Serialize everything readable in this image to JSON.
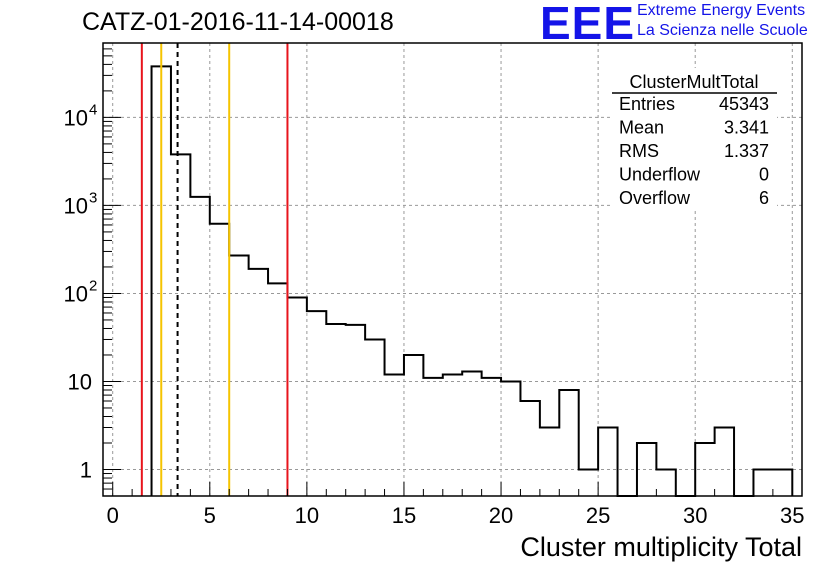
{
  "header": {
    "title": "CATZ-01-2016-11-14-00018",
    "logo_text": "EEE",
    "logo_line1": "Extreme Energy Events",
    "logo_line2": "La Scienza nelle Scuole",
    "logo_color": "#1414e8"
  },
  "stats": {
    "name": "ClusterMultTotal",
    "rows": [
      {
        "label": "Entries",
        "value": "45343"
      },
      {
        "label": "Mean",
        "value": "3.341"
      },
      {
        "label": "RMS",
        "value": "1.337"
      },
      {
        "label": "Underflow",
        "value": "0"
      },
      {
        "label": "Overflow",
        "value": "6"
      }
    ]
  },
  "chart_data": {
    "type": "histogram",
    "xlabel": "Cluster multiplicity Total",
    "ylabel": "",
    "xlim": [
      -0.5,
      35.5
    ],
    "ylim": [
      0.5,
      70000
    ],
    "yscale": "log",
    "grid": true,
    "bin_width": 1,
    "bins": [
      {
        "x": 2.5,
        "y": 38000
      },
      {
        "x": 3.5,
        "y": 3800
      },
      {
        "x": 4.5,
        "y": 1250
      },
      {
        "x": 5.5,
        "y": 620
      },
      {
        "x": 6.5,
        "y": 270
      },
      {
        "x": 7.5,
        "y": 190
      },
      {
        "x": 8.5,
        "y": 130
      },
      {
        "x": 9.5,
        "y": 90
      },
      {
        "x": 10.5,
        "y": 63
      },
      {
        "x": 11.5,
        "y": 45
      },
      {
        "x": 12.5,
        "y": 44
      },
      {
        "x": 13.5,
        "y": 30
      },
      {
        "x": 14.5,
        "y": 12
      },
      {
        "x": 15.5,
        "y": 20
      },
      {
        "x": 16.5,
        "y": 11
      },
      {
        "x": 17.5,
        "y": 12
      },
      {
        "x": 18.5,
        "y": 13
      },
      {
        "x": 19.5,
        "y": 11
      },
      {
        "x": 20.5,
        "y": 10
      },
      {
        "x": 21.5,
        "y": 6
      },
      {
        "x": 22.5,
        "y": 3
      },
      {
        "x": 23.5,
        "y": 8
      },
      {
        "x": 24.5,
        "y": 1
      },
      {
        "x": 25.5,
        "y": 3
      },
      {
        "x": 26.5,
        "y": 0
      },
      {
        "x": 27.5,
        "y": 2
      },
      {
        "x": 28.5,
        "y": 1
      },
      {
        "x": 29.5,
        "y": 0
      },
      {
        "x": 30.5,
        "y": 2
      },
      {
        "x": 31.5,
        "y": 3
      },
      {
        "x": 32.5,
        "y": 0
      },
      {
        "x": 33.5,
        "y": 1
      },
      {
        "x": 34.5,
        "y": 1
      }
    ],
    "x_ticks": [
      0,
      5,
      10,
      15,
      20,
      25,
      30,
      35
    ],
    "y_ticks": [
      {
        "value": 1,
        "label": "1"
      },
      {
        "value": 10,
        "label": "10"
      },
      {
        "value": 100,
        "label": "10",
        "exp": "2"
      },
      {
        "value": 1000,
        "label": "10",
        "exp": "3"
      },
      {
        "value": 10000,
        "label": "10",
        "exp": "4"
      }
    ],
    "vlines": [
      {
        "x": 1.5,
        "color": "#e8141c",
        "style": "solid"
      },
      {
        "x": 2.5,
        "color": "#f5c400",
        "style": "solid"
      },
      {
        "x": 3.341,
        "color": "#000000",
        "style": "dashed"
      },
      {
        "x": 6.0,
        "color": "#f5c400",
        "style": "solid"
      },
      {
        "x": 9.0,
        "color": "#e8141c",
        "style": "solid"
      }
    ]
  }
}
